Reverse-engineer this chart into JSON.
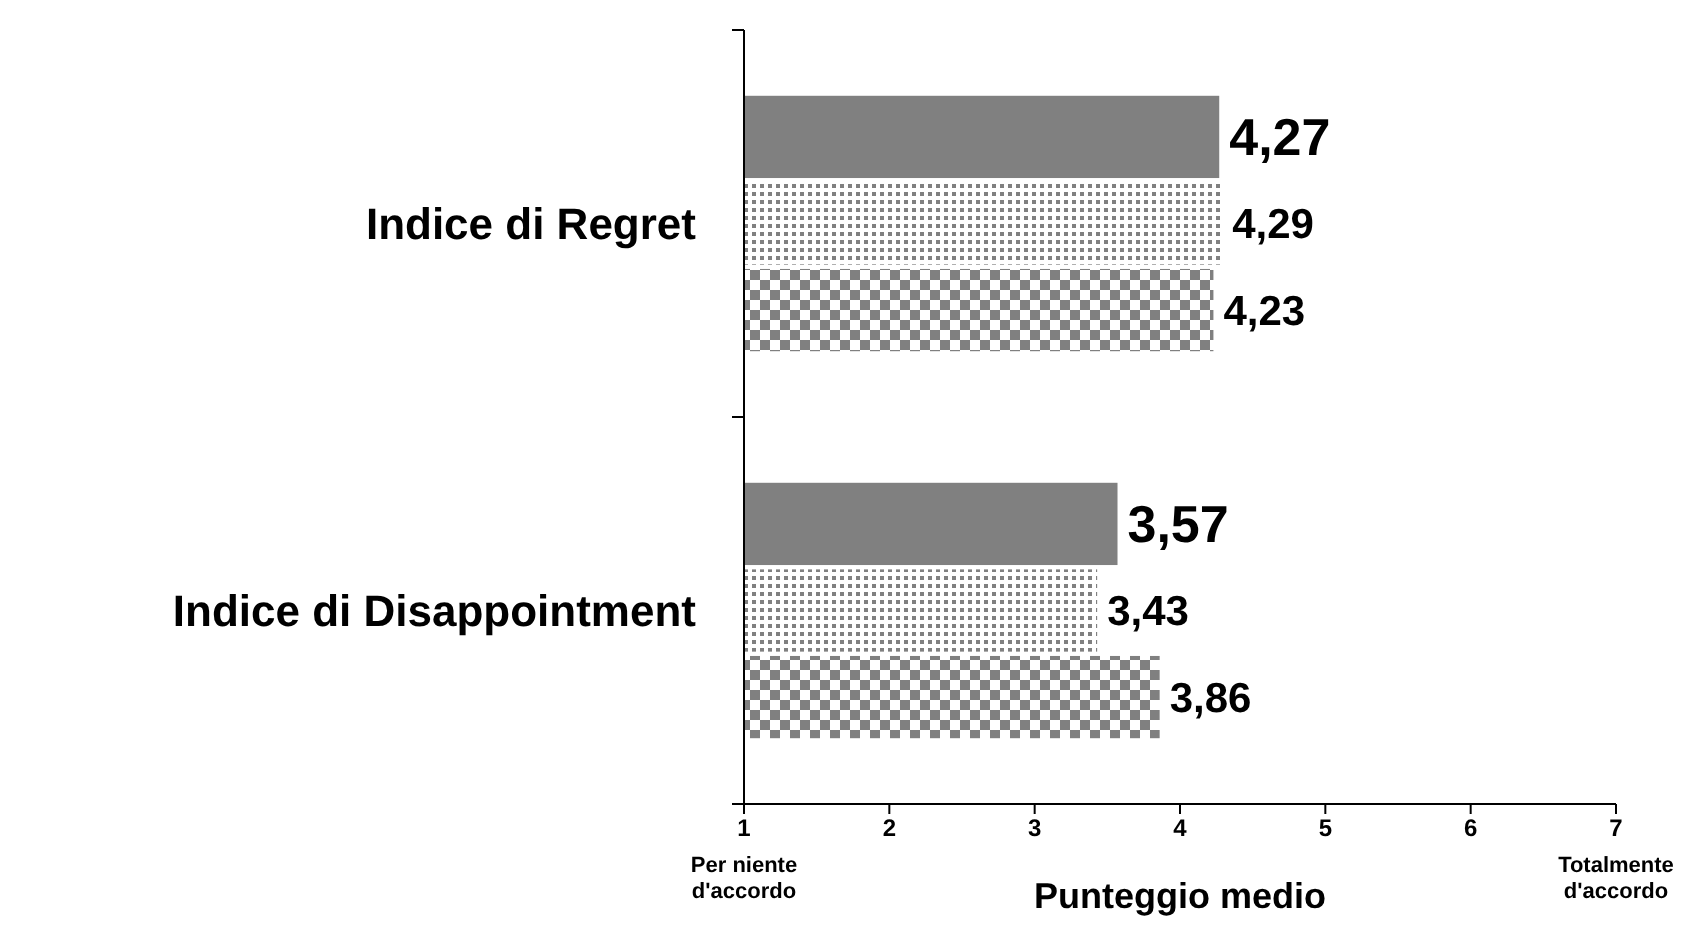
{
  "chart_data": {
    "type": "bar",
    "orientation": "horizontal",
    "xlabel": "Punteggio medio",
    "categories": [
      "Indice di Regret",
      "Indice di Disappointment"
    ],
    "series": [
      {
        "color": "#808080",
        "values": [
          4.27,
          3.57
        ],
        "value_labels": [
          "4,27",
          "3,57"
        ]
      },
      {
        "color": "#808080",
        "values": [
          4.29,
          3.43
        ],
        "value_labels": [
          "4,29",
          "3,43"
        ]
      },
      {
        "color": "#808080",
        "values": [
          4.23,
          3.86
        ],
        "value_labels": [
          "4,23",
          "3,86"
        ]
      }
    ],
    "xlim": [
      1,
      7
    ],
    "xticks": [
      1,
      2,
      3,
      4,
      5,
      6,
      7
    ],
    "grid": false,
    "annotations": [
      "Per niente d'accordo",
      "Totalmente d'accordo"
    ]
  }
}
